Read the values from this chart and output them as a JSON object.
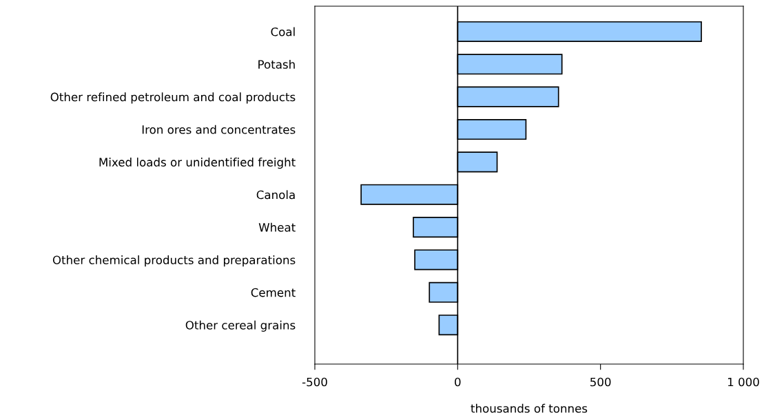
{
  "chart_data": {
    "type": "bar",
    "orientation": "horizontal",
    "xlabel": "thousands of tonnes",
    "categories": [
      "Coal",
      "Potash",
      "Other refined petroleum and coal products",
      "Iron ores and concentrates",
      "Mixed loads or unidentified freight",
      "Canola",
      "Wheat",
      "Other chemical products and preparations",
      "Cement",
      "Other cereal grains"
    ],
    "values": [
      853,
      365,
      353,
      239,
      138,
      -338,
      -155,
      -150,
      -99,
      -65
    ],
    "color": "#99ccff",
    "xlim": [
      -500,
      1000
    ],
    "xticks": [
      -500,
      0,
      500,
      {
        "value": 1000,
        "label": "1 000"
      }
    ],
    "ref_lines": [
      {
        "axis": "x",
        "value": 0,
        "color": "#000000"
      }
    ],
    "grid": false,
    "legend": false
  }
}
